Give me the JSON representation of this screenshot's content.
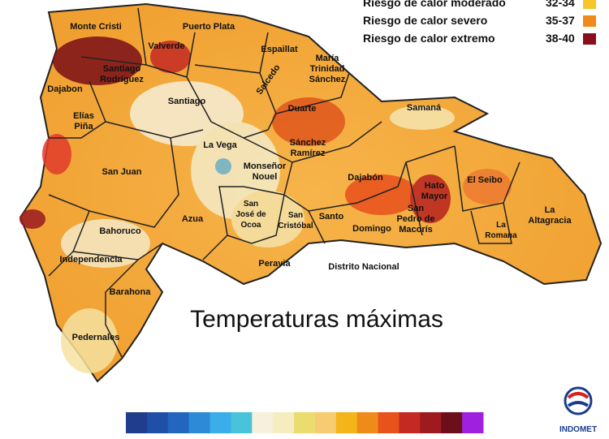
{
  "legend": [
    {
      "label": "Riesgo de calor moderado",
      "range": "32-34",
      "color": "#f7c62a"
    },
    {
      "label": "Riesgo de calor severo",
      "range": "35-37",
      "color": "#f08a1a"
    },
    {
      "label": "Riesgo de calor extremo",
      "range": "38-40",
      "color": "#8a0f1c"
    }
  ],
  "provinces": [
    {
      "lines": [
        "Monte Cristi"
      ]
    },
    {
      "lines": [
        "Puerto Plata"
      ]
    },
    {
      "lines": [
        "Valverde"
      ]
    },
    {
      "lines": [
        "Espaillat"
      ]
    },
    {
      "lines": [
        "María",
        "Trinidad",
        "Sánchez"
      ]
    },
    {
      "lines": [
        "Santiago",
        "Rodríguez"
      ]
    },
    {
      "lines": [
        "Dajabon"
      ]
    },
    {
      "lines": [
        "Salcedo"
      ]
    },
    {
      "lines": [
        "Santiago"
      ]
    },
    {
      "lines": [
        "Duarte"
      ]
    },
    {
      "lines": [
        "Samaná"
      ]
    },
    {
      "lines": [
        "Elías",
        "Piña"
      ]
    },
    {
      "lines": [
        "La Vega"
      ]
    },
    {
      "lines": [
        "Sánchez",
        "Ramírez"
      ]
    },
    {
      "lines": [
        "San Juan"
      ]
    },
    {
      "lines": [
        "Monseñor",
        "Nouel"
      ]
    },
    {
      "lines": [
        "Dajabón"
      ]
    },
    {
      "lines": [
        "Hato",
        "Mayor"
      ]
    },
    {
      "lines": [
        "El Seibo"
      ]
    },
    {
      "lines": [
        "La",
        "Altagracia"
      ]
    },
    {
      "lines": [
        "Bahoruco"
      ]
    },
    {
      "lines": [
        "Azua"
      ]
    },
    {
      "lines": [
        "San",
        "José de",
        "Ocoa"
      ]
    },
    {
      "lines": [
        "San",
        "Cristóbal"
      ]
    },
    {
      "lines": [
        "Santo"
      ]
    },
    {
      "lines": [
        "Domingo"
      ]
    },
    {
      "lines": [
        "San",
        "Pedro de",
        "Macorís"
      ]
    },
    {
      "lines": [
        "La",
        "Romana"
      ]
    },
    {
      "lines": [
        "Independencia"
      ]
    },
    {
      "lines": [
        "Peravia"
      ]
    },
    {
      "lines": [
        "Distrito Nacional"
      ]
    },
    {
      "lines": [
        "Barahona"
      ]
    },
    {
      "lines": [
        "Pedernales"
      ]
    }
  ],
  "title": "Temperaturas máximas",
  "colorbar": [
    "#1f3d8c",
    "#1f4fa6",
    "#2266c0",
    "#2c8ad6",
    "#3aaee8",
    "#48c3d9",
    "#f6f0dc",
    "#f5ecc0",
    "#ecdc6e",
    "#f7cb72",
    "#f5b51a",
    "#f08a1a",
    "#e8531c",
    "#c42a22",
    "#9e1a1f",
    "#6d0f1a",
    "#a020e0"
  ],
  "logo": "INDOMET"
}
